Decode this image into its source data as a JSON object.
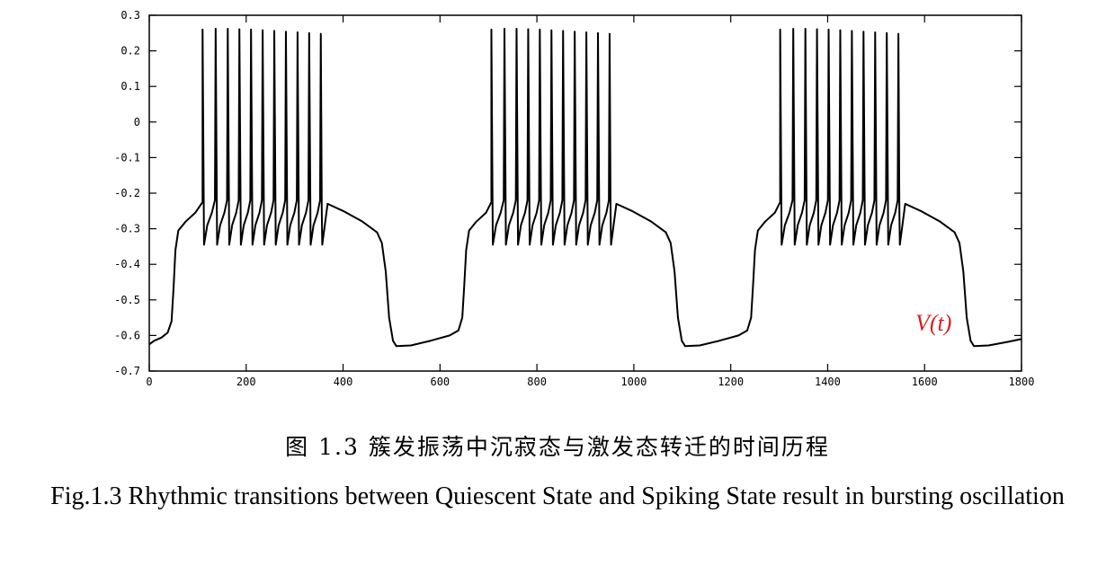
{
  "chart_data": {
    "type": "line",
    "xlim": [
      0,
      1800
    ],
    "ylim": [
      -0.7,
      0.3
    ],
    "x_ticks": [
      0,
      200,
      400,
      600,
      800,
      1000,
      1200,
      1400,
      1600,
      1800
    ],
    "x_tick_labels": [
      "0",
      "200",
      "400",
      "600",
      "800",
      "1000",
      "1200",
      "1400",
      "1600",
      "1800"
    ],
    "y_ticks": [
      -0.7,
      -0.6,
      -0.5,
      -0.4,
      -0.3,
      -0.2,
      -0.1,
      0,
      0.1,
      0.2,
      0.3
    ],
    "y_tick_labels": [
      "-0.7",
      "-0.6",
      "-0.5",
      "-0.4",
      "-0.3",
      "-0.2",
      "-0.1",
      "0",
      "0.1",
      "0.2",
      "0.3"
    ],
    "grid": false,
    "line_color": "#000000",
    "series": [
      {
        "name": "V(t)",
        "label_color": "#d62020",
        "bursts": [
          {
            "spikes_x": [
              110,
              137,
              162,
              186,
              210,
              234,
              258,
              282,
              306,
              330,
              354
            ],
            "spike_peaks": [
              0.26,
              0.262,
              0.262,
              0.261,
              0.26,
              0.258,
              0.256,
              0.254,
              0.252,
              0.25,
              0.248
            ],
            "trough": -0.345
          },
          {
            "spikes_x": [
              706,
              733,
              758,
              782,
              806,
              830,
              854,
              878,
              902,
              926,
              950
            ],
            "spike_peaks": [
              0.26,
              0.262,
              0.262,
              0.261,
              0.26,
              0.258,
              0.256,
              0.254,
              0.252,
              0.25,
              0.248
            ],
            "trough": -0.345
          },
          {
            "spikes_x": [
              1302,
              1329,
              1354,
              1378,
              1402,
              1426,
              1450,
              1474,
              1498,
              1522,
              1546
            ],
            "spike_peaks": [
              0.26,
              0.262,
              0.262,
              0.261,
              0.26,
              0.258,
              0.256,
              0.254,
              0.252,
              0.25,
              0.248
            ],
            "trough": -0.345
          }
        ],
        "points": [
          [
            0,
            -0.625
          ],
          [
            10,
            -0.615
          ],
          [
            25,
            -0.606
          ],
          [
            38,
            -0.592
          ],
          [
            46,
            -0.56
          ],
          [
            50,
            -0.47
          ],
          [
            54,
            -0.36
          ],
          [
            60,
            -0.305
          ],
          [
            75,
            -0.28
          ],
          [
            95,
            -0.255
          ],
          [
            110,
            -0.225
          ],
          [
            356,
            -0.25
          ],
          [
            368,
            -0.23
          ],
          [
            400,
            -0.25
          ],
          [
            440,
            -0.28
          ],
          [
            470,
            -0.31
          ],
          [
            480,
            -0.34
          ],
          [
            488,
            -0.42
          ],
          [
            495,
            -0.55
          ],
          [
            503,
            -0.615
          ],
          [
            510,
            -0.63
          ],
          [
            540,
            -0.628
          ],
          [
            580,
            -0.615
          ],
          [
            620,
            -0.6
          ],
          [
            638,
            -0.586
          ],
          [
            646,
            -0.55
          ],
          [
            650,
            -0.46
          ],
          [
            654,
            -0.36
          ],
          [
            660,
            -0.305
          ],
          [
            675,
            -0.28
          ],
          [
            695,
            -0.255
          ],
          [
            706,
            -0.225
          ],
          [
            952,
            -0.25
          ],
          [
            964,
            -0.23
          ],
          [
            996,
            -0.25
          ],
          [
            1036,
            -0.28
          ],
          [
            1066,
            -0.31
          ],
          [
            1076,
            -0.34
          ],
          [
            1084,
            -0.42
          ],
          [
            1091,
            -0.55
          ],
          [
            1099,
            -0.615
          ],
          [
            1106,
            -0.63
          ],
          [
            1136,
            -0.628
          ],
          [
            1176,
            -0.615
          ],
          [
            1216,
            -0.6
          ],
          [
            1234,
            -0.586
          ],
          [
            1242,
            -0.55
          ],
          [
            1246,
            -0.46
          ],
          [
            1250,
            -0.36
          ],
          [
            1256,
            -0.305
          ],
          [
            1271,
            -0.28
          ],
          [
            1291,
            -0.255
          ],
          [
            1302,
            -0.225
          ],
          [
            1548,
            -0.25
          ],
          [
            1560,
            -0.23
          ],
          [
            1592,
            -0.25
          ],
          [
            1632,
            -0.28
          ],
          [
            1662,
            -0.31
          ],
          [
            1672,
            -0.34
          ],
          [
            1680,
            -0.42
          ],
          [
            1687,
            -0.55
          ],
          [
            1695,
            -0.615
          ],
          [
            1702,
            -0.63
          ],
          [
            1732,
            -0.628
          ],
          [
            1772,
            -0.618
          ],
          [
            1800,
            -0.61
          ]
        ]
      }
    ]
  },
  "caption": {
    "chinese": "图 1.3 簇发振荡中沉寂态与激发态转迁的时间历程",
    "english": "Fig.1.3 Rhythmic transitions between Quiescent State and Spiking State result in bursting oscillation"
  }
}
